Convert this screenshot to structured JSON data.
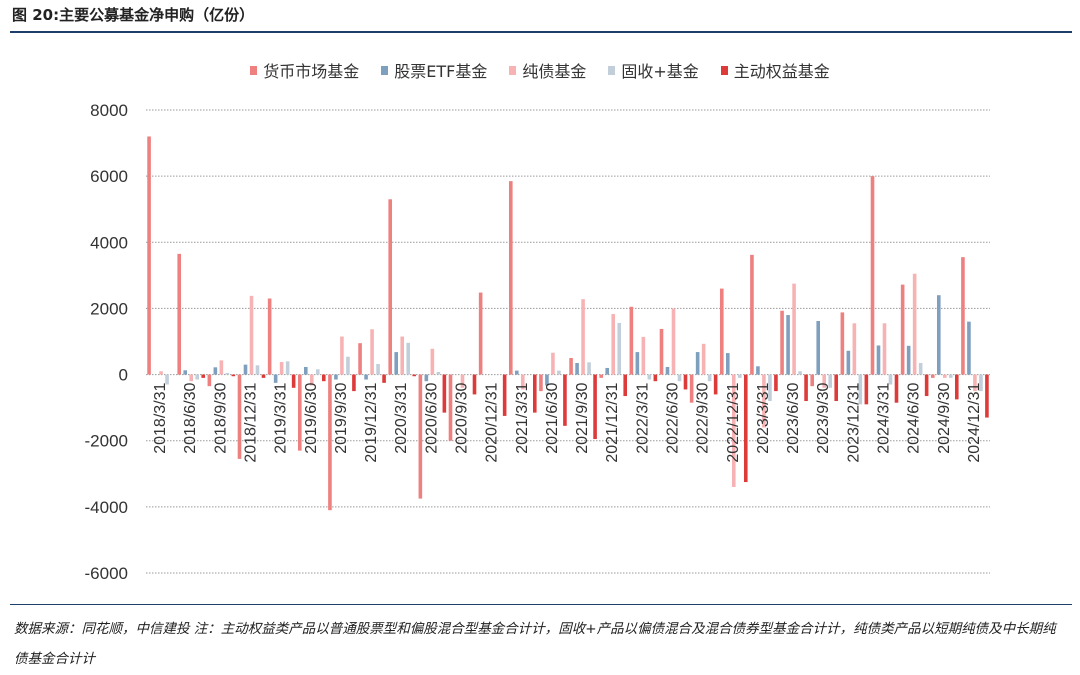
{
  "figure": {
    "title": "图 20:主要公募基金净申购（亿份）",
    "source_note": "数据来源：同花顺，中信建投  注：主动权益类产品以普通股票型和偏股混合型基金合计计，固收+产品以偏债混合及混合债券型基金合计计，纯债类产品以短期纯债及中长期纯债基金合计计"
  },
  "chart_data": {
    "type": "bar",
    "categories": [
      "2018/3/31",
      "2018/6/30",
      "2018/9/30",
      "2018/12/31",
      "2019/3/31",
      "2019/6/30",
      "2019/9/30",
      "2019/12/31",
      "2020/3/31",
      "2020/6/30",
      "2020/9/30",
      "2020/12/31",
      "2021/3/31",
      "2021/6/30",
      "2021/9/30",
      "2021/12/31",
      "2022/3/31",
      "2022/6/30",
      "2022/9/30",
      "2022/12/31",
      "2023/3/31",
      "2023/6/30",
      "2023/9/30",
      "2023/12/31",
      "2024/3/31",
      "2024/6/30",
      "2024/9/30",
      "2024/12/31"
    ],
    "series": [
      {
        "name": "货币市场基金",
        "color": "#ee8080",
        "values": [
          7200,
          3650,
          -350,
          -2550,
          2300,
          -2300,
          -4100,
          950,
          5300,
          -3750,
          -2000,
          2480,
          5850,
          -500,
          500,
          -100,
          2050,
          1380,
          -850,
          2600,
          3620,
          1930,
          -350,
          1880,
          6000,
          2720,
          -100,
          3550
        ]
      },
      {
        "name": "股票ETF基金",
        "color": "#7f9fbe",
        "values": [
          0,
          130,
          220,
          300,
          -250,
          230,
          -150,
          -150,
          680,
          -200,
          0,
          0,
          120,
          -330,
          350,
          200,
          680,
          230,
          680,
          650,
          250,
          1800,
          1620,
          720,
          880,
          870,
          2400,
          1600
        ]
      },
      {
        "name": "纯债基金",
        "color": "#f7b3b3",
        "values": [
          100,
          -200,
          430,
          2380,
          380,
          -330,
          1150,
          1370,
          1150,
          780,
          -400,
          0,
          -450,
          660,
          2280,
          1830,
          1140,
          2000,
          930,
          -3400,
          -1600,
          2750,
          -400,
          1550,
          1550,
          3050,
          -100,
          -500
        ]
      },
      {
        "name": "固收+基金",
        "color": "#c2ced9",
        "values": [
          -300,
          -150,
          50,
          280,
          400,
          160,
          540,
          320,
          960,
          80,
          0,
          0,
          0,
          120,
          370,
          1560,
          -150,
          -200,
          -200,
          -100,
          -800,
          100,
          -400,
          -900,
          -300,
          350,
          -100,
          -500
        ]
      },
      {
        "name": "主动权益基金",
        "color": "#dd3a3a",
        "values": [
          0,
          -100,
          -50,
          -100,
          -400,
          -200,
          -500,
          -250,
          -50,
          -1150,
          -600,
          -1250,
          -1150,
          -1550,
          -1950,
          -650,
          -200,
          -450,
          -600,
          -3250,
          -500,
          -800,
          -800,
          -900,
          -850,
          -650,
          -750,
          -1300
        ]
      }
    ],
    "ylim": [
      -6000,
      8000
    ],
    "yticks": [
      -6000,
      -4000,
      -2000,
      0,
      2000,
      4000,
      6000,
      8000
    ],
    "grid": true,
    "legend_position": "top"
  }
}
